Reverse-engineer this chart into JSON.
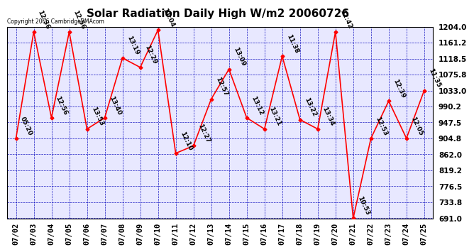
{
  "title": "Solar Radiation Daily High W/m2 20060726",
  "copyright": "Copyright 2006 CambridgeBMAcom",
  "dates": [
    "07/02",
    "07/03",
    "07/04",
    "07/05",
    "07/06",
    "07/07",
    "07/08",
    "07/09",
    "07/10",
    "07/11",
    "07/12",
    "07/13",
    "07/14",
    "07/15",
    "07/16",
    "07/17",
    "07/18",
    "07/19",
    "07/20",
    "07/21",
    "07/22",
    "07/23",
    "07/24",
    "07/25"
  ],
  "values": [
    905,
    1190,
    960,
    1190,
    930,
    960,
    1120,
    1095,
    1195,
    865,
    885,
    1010,
    1090,
    960,
    930,
    1125,
    955,
    930,
    1190,
    691,
    905,
    1005,
    905,
    1033
  ],
  "time_labels": [
    "05:20",
    "12:36",
    "12:56",
    "12:56",
    "13:53",
    "13:40",
    "13:19",
    "12:29",
    "11:04",
    "12:10",
    "12:27",
    "12:57",
    "13:09",
    "13:12",
    "13:21",
    "11:38",
    "13:22",
    "13:34",
    "12:42",
    "10:53",
    "12:53",
    "12:39",
    "12:05",
    "11:35"
  ],
  "ylim": [
    691.0,
    1204.0
  ],
  "yticks": [
    691.0,
    733.8,
    776.5,
    819.2,
    862.0,
    904.8,
    947.5,
    990.2,
    1033.0,
    1075.8,
    1118.5,
    1161.2,
    1204.0
  ],
  "line_color": "red",
  "marker_color": "red",
  "grid_color": "#0000bb",
  "background_color": "#ffffff",
  "plot_bg_color": "#e8e8ff",
  "title_fontsize": 11,
  "label_fontsize": 6.5,
  "tick_fontsize": 7.5,
  "copyright_fontsize": 5.5
}
